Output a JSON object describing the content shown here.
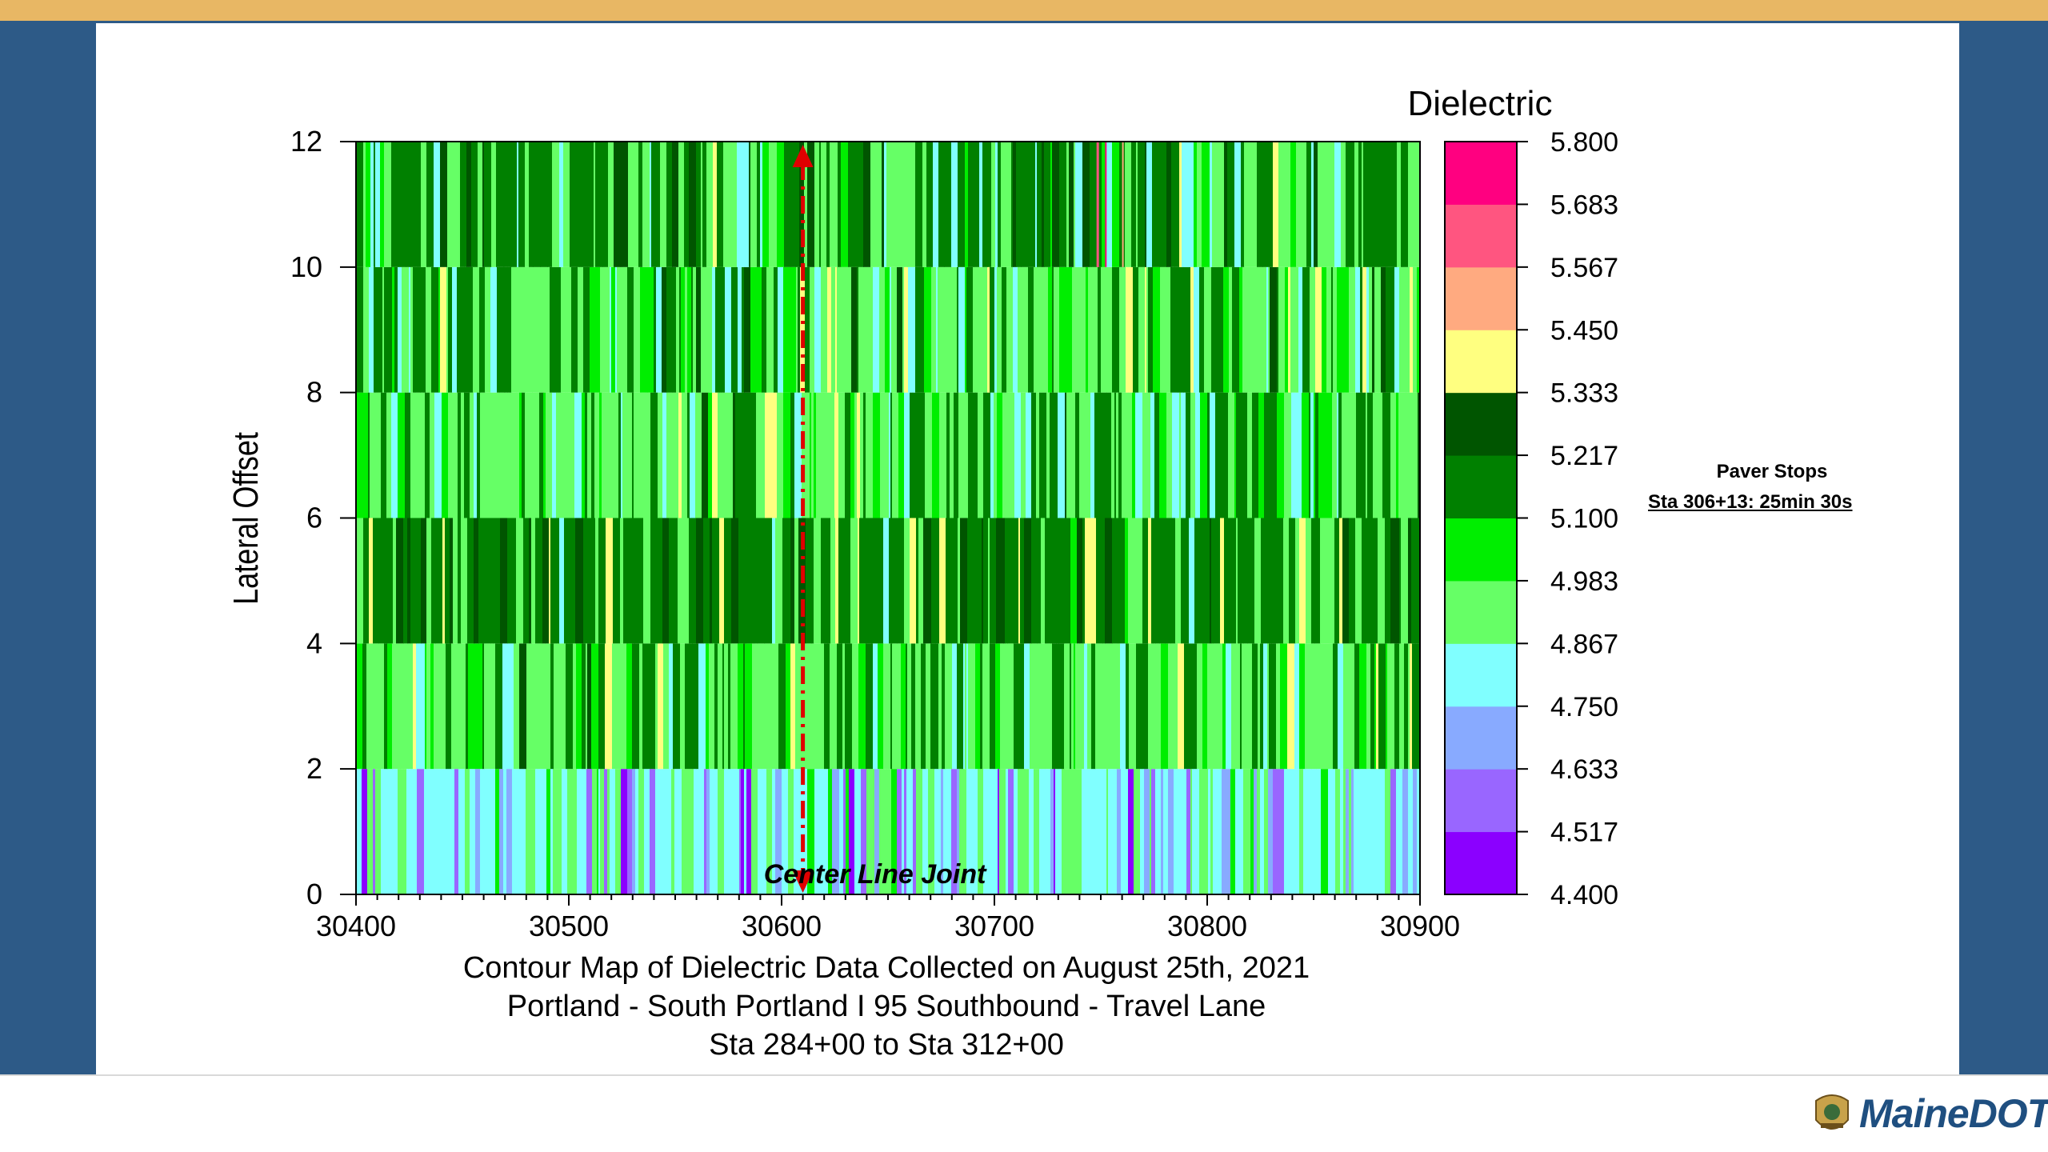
{
  "chart_data": {
    "type": "heatmap",
    "title": "Contour Map of Dielectric Data Collected on August 25th, 2021",
    "subtitle_lines": [
      "Portland - South Portland I 95 Southbound - Travel Lane",
      "Sta 284+00 to Sta 312+00"
    ],
    "xlabel": "",
    "ylabel": "Lateral Offset",
    "xlim": [
      30400,
      30900
    ],
    "ylim": [
      0,
      12
    ],
    "x_ticks": [
      "30400",
      "30500",
      "30600",
      "30700",
      "30800",
      "30900"
    ],
    "y_ticks": [
      "0",
      "2",
      "4",
      "6",
      "8",
      "10",
      "12"
    ],
    "colorbar": {
      "title": "Dielectric",
      "levels": [
        "4.400",
        "4.517",
        "4.633",
        "4.750",
        "4.867",
        "4.983",
        "5.100",
        "5.217",
        "5.333",
        "5.450",
        "5.567",
        "5.683",
        "5.800"
      ],
      "colors": [
        "#8b00ff",
        "#9966ff",
        "#88aaff",
        "#80ffff",
        "#66ff66",
        "#00ee00",
        "#008000",
        "#005500",
        "#ffff80",
        "#ffaa80",
        "#ff5580",
        "#ff0080"
      ]
    },
    "rows": [
      {
        "y": [
          0,
          2
        ],
        "dominant": "4.633-4.867",
        "pattern": "light"
      },
      {
        "y": [
          2,
          4
        ],
        "dominant": "4.867-5.100",
        "pattern": "mixed"
      },
      {
        "y": [
          4,
          6
        ],
        "dominant": "5.100-5.333",
        "pattern": "dark"
      },
      {
        "y": [
          6,
          8
        ],
        "dominant": "4.867-5.217",
        "pattern": "mixed"
      },
      {
        "y": [
          8,
          10
        ],
        "dominant": "4.867-5.217",
        "pattern": "mixed"
      },
      {
        "y": [
          10,
          12
        ],
        "dominant": "4.983-5.217",
        "pattern": "darkish"
      }
    ],
    "annotation": {
      "text": "Center Line Joint",
      "x": 30610
    }
  },
  "paver_stops": {
    "title": "Paver Stops",
    "note": "Sta 306+13:  25min 30s"
  },
  "logo": {
    "text": "MaineDOT"
  },
  "colors": {
    "top_bar": "#e8b764",
    "side_bands": "#2d5a87",
    "annotation_arrow": "#e00000"
  }
}
